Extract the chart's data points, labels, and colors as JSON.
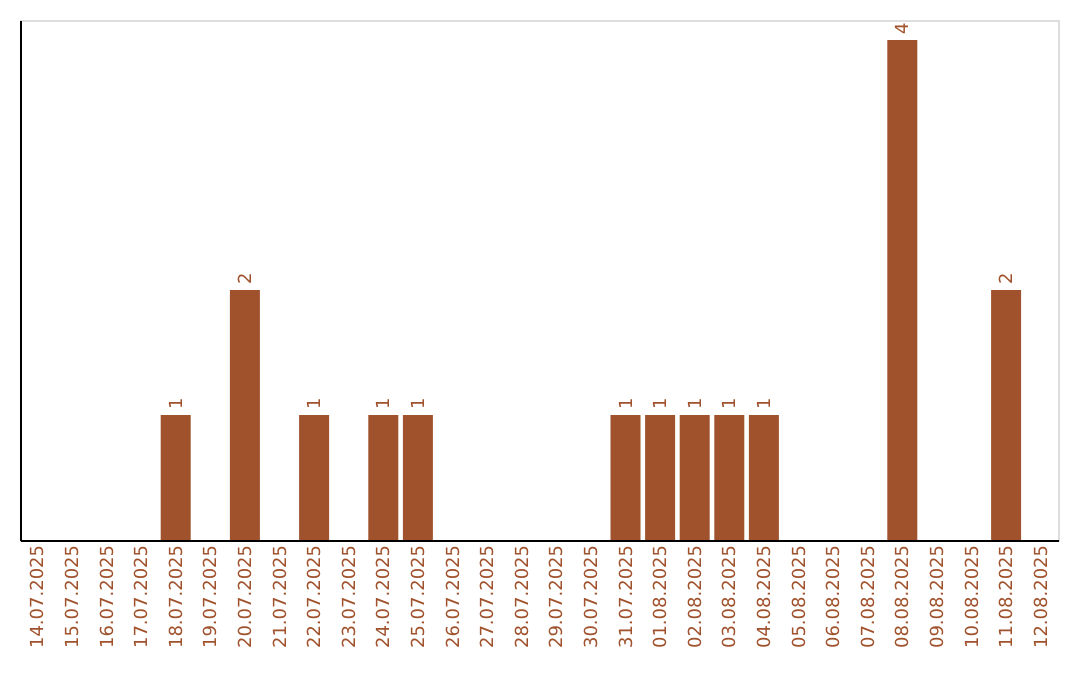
{
  "chart_data": {
    "type": "bar",
    "categories": [
      "14.07.2025",
      "15.07.2025",
      "16.07.2025",
      "17.07.2025",
      "18.07.2025",
      "19.07.2025",
      "20.07.2025",
      "21.07.2025",
      "22.07.2025",
      "23.07.2025",
      "24.07.2025",
      "25.07.2025",
      "26.07.2025",
      "27.07.2025",
      "28.07.2025",
      "29.07.2025",
      "30.07.2025",
      "31.07.2025",
      "01.08.2025",
      "02.08.2025",
      "03.08.2025",
      "04.08.2025",
      "05.08.2025",
      "06.08.2025",
      "07.08.2025",
      "08.08.2025",
      "09.08.2025",
      "10.08.2025",
      "11.08.2025",
      "12.08.2025"
    ],
    "values": [
      0,
      0,
      0,
      0,
      1,
      0,
      2,
      0,
      1,
      0,
      1,
      1,
      0,
      0,
      0,
      0,
      0,
      1,
      1,
      1,
      1,
      1,
      0,
      0,
      0,
      4,
      0,
      0,
      2,
      0
    ],
    "value_labels": [
      null,
      null,
      null,
      null,
      "1",
      null,
      "2",
      null,
      "1",
      null,
      "1",
      "1",
      null,
      null,
      null,
      null,
      null,
      "1",
      "1",
      "1",
      "1",
      "1",
      null,
      null,
      null,
      "4",
      null,
      null,
      "2",
      null
    ],
    "color": "#a0522d",
    "ylim": [
      0,
      4.16
    ],
    "tick_labels": "x",
    "grid": false
  }
}
